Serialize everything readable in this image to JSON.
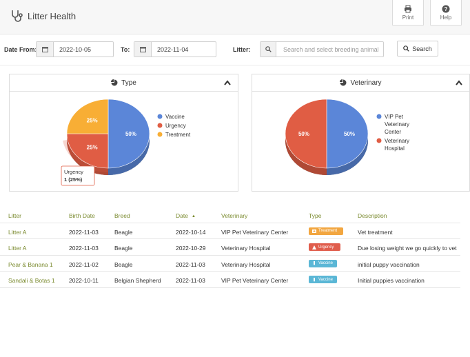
{
  "app": {
    "title": "Litter Health"
  },
  "header_buttons": {
    "print": "Print",
    "help": "Help"
  },
  "filters": {
    "date_from_label": "Date From:",
    "date_from_value": "2022-10-05",
    "to_label": "To:",
    "to_value": "2022-11-04",
    "litter_label": "Litter:",
    "litter_placeholder": "Search and select breeding animal",
    "search_button": "Search"
  },
  "panels": {
    "type": {
      "title": "Type"
    },
    "veterinary": {
      "title": "Veterinary"
    }
  },
  "chart_data": [
    {
      "type": "pie",
      "title": "Type",
      "slices": [
        {
          "name": "Vaccine",
          "value": 50,
          "label": "50%",
          "color": "#5b86d8"
        },
        {
          "name": "Urgency",
          "value": 25,
          "label": "25%",
          "color": "#e05d44"
        },
        {
          "name": "Treatment",
          "value": 25,
          "label": "25%",
          "color": "#f8ae35"
        }
      ],
      "legend": "right",
      "tooltip": {
        "name": "Urgency",
        "value": "1 (25%)"
      }
    },
    {
      "type": "pie",
      "title": "Veterinary",
      "slices": [
        {
          "name": "VIP Pet Veterinary Center",
          "legend_lines": [
            "VIP Pet",
            "Veterinary",
            "Center"
          ],
          "value": 50,
          "label": "50%",
          "color": "#5b86d8"
        },
        {
          "name": "Veterinary Hospital",
          "legend_lines": [
            "Veterinary",
            "Hospital"
          ],
          "value": 50,
          "label": "50%",
          "color": "#e05d44"
        }
      ],
      "legend": "right"
    }
  ],
  "table": {
    "columns": [
      "Litter",
      "Birth Date",
      "Breed",
      "Date",
      "Veterinary",
      "Type",
      "Description"
    ],
    "rows": [
      {
        "litter": "Litter A",
        "birth_date": "2022-11-03",
        "breed": "Beagle",
        "date": "2022-10-14",
        "veterinary": "VIP Pet Veterinary Center",
        "type": "Treatment",
        "description": "Vet treatment"
      },
      {
        "litter": "Litter A",
        "birth_date": "2022-11-03",
        "breed": "Beagle",
        "date": "2022-10-29",
        "veterinary": "Veterinary Hospital",
        "type": "Urgency",
        "description": "Due losing weight we go quickly to vet"
      },
      {
        "litter": "Pear & Banana 1",
        "birth_date": "2022-11-02",
        "breed": "Beagle",
        "date": "2022-11-03",
        "veterinary": "Veterinary Hospital",
        "type": "Vaccine",
        "description": "initial puppy vaccination"
      },
      {
        "litter": "Sandali & Botas 1",
        "birth_date": "2022-10-11",
        "breed": "Belgian Shepherd",
        "date": "2022-11-03",
        "veterinary": "VIP Pet Veterinary Center",
        "type": "Vaccine",
        "description": "Initial puppies vaccination"
      }
    ]
  },
  "colors": {
    "accent": "#7a8a2e",
    "vaccine": "#5b86d8",
    "urgency": "#e05d44",
    "treatment": "#f8ae35"
  },
  "icons": {
    "brand": "stethoscope-icon",
    "print": "printer-icon",
    "help": "help-icon",
    "calendar": "calendar-icon",
    "search": "search-icon",
    "panel": "pie-chart-icon",
    "collapse": "chevron-up-icon"
  }
}
